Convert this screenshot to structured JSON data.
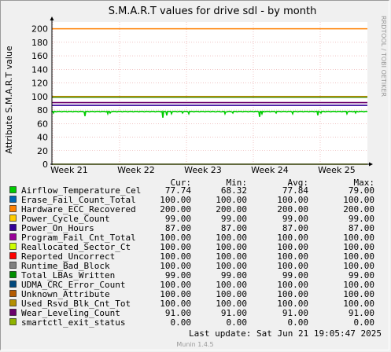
{
  "chart_data": {
    "type": "line",
    "title": "S.M.A.R.T values for drive sdl - by month",
    "ylabel": "Attribute S.M.A.R.T value",
    "side_label": "RRDTOOL / TOBI OETIKER",
    "x_ticks": [
      "Week 21",
      "Week 22",
      "Week 23",
      "Week 24",
      "Week 25"
    ],
    "y_ticks": [
      "0",
      "20",
      "40",
      "60",
      "80",
      "100",
      "120",
      "140",
      "160",
      "180",
      "200"
    ],
    "ylim": [
      0,
      210
    ],
    "grid": true,
    "legend_headers": {
      "cur": "Cur:",
      "min": "Min:",
      "avg": "Avg:",
      "max": "Max:"
    },
    "series": [
      {
        "name": "Airflow_Temperature_Cel",
        "color": "#00cc00",
        "cur": "77.74",
        "min": "68.32",
        "avg": "77.84",
        "max": "79.00",
        "level": 78
      },
      {
        "name": "Erase_Fail_Count_Total",
        "color": "#0066b3",
        "cur": "100.00",
        "min": "100.00",
        "avg": "100.00",
        "max": "100.00",
        "level": 100
      },
      {
        "name": "Hardware_ECC_Recovered",
        "color": "#ff8000",
        "cur": "200.00",
        "min": "200.00",
        "avg": "200.00",
        "max": "200.00",
        "level": 200
      },
      {
        "name": "Power_Cycle_Count",
        "color": "#ffcc00",
        "cur": "99.00",
        "min": "99.00",
        "avg": "99.00",
        "max": "99.00",
        "level": 99
      },
      {
        "name": "Power_On_Hours",
        "color": "#330099",
        "cur": "87.00",
        "min": "87.00",
        "avg": "87.00",
        "max": "87.00",
        "level": 87
      },
      {
        "name": "Program_Fail_Cnt_Total",
        "color": "#990099",
        "cur": "100.00",
        "min": "100.00",
        "avg": "100.00",
        "max": "100.00",
        "level": 100
      },
      {
        "name": "Reallocated_Sector_Ct",
        "color": "#ccff00",
        "cur": "100.00",
        "min": "100.00",
        "avg": "100.00",
        "max": "100.00",
        "level": 100
      },
      {
        "name": "Reported_Uncorrect",
        "color": "#ff0000",
        "cur": "100.00",
        "min": "100.00",
        "avg": "100.00",
        "max": "100.00",
        "level": 100
      },
      {
        "name": "Runtime_Bad_Block",
        "color": "#808080",
        "cur": "100.00",
        "min": "100.00",
        "avg": "100.00",
        "max": "100.00",
        "level": 100
      },
      {
        "name": "Total_LBAs_Written",
        "color": "#008f00",
        "cur": "99.00",
        "min": "99.00",
        "avg": "99.00",
        "max": "99.00",
        "level": 99
      },
      {
        "name": "UDMA_CRC_Error_Count",
        "color": "#00487d",
        "cur": "100.00",
        "min": "100.00",
        "avg": "100.00",
        "max": "100.00",
        "level": 100
      },
      {
        "name": "Unknown_Attribute",
        "color": "#b35a00",
        "cur": "100.00",
        "min": "100.00",
        "avg": "100.00",
        "max": "100.00",
        "level": 100
      },
      {
        "name": "Used_Rsvd_Blk_Cnt_Tot",
        "color": "#b38f00",
        "cur": "100.00",
        "min": "100.00",
        "avg": "100.00",
        "max": "100.00",
        "level": 100
      },
      {
        "name": "Wear_Leveling_Count",
        "color": "#6b006b",
        "cur": "91.00",
        "min": "91.00",
        "avg": "91.00",
        "max": "91.00",
        "level": 91
      },
      {
        "name": "smartctl_exit_status",
        "color": "#8fb300",
        "cur": "0.00",
        "min": "0.00",
        "avg": "0.00",
        "max": "0.00",
        "level": 0
      }
    ],
    "last_update": "Last update:  Sat Jun 21 19:05:47 2025",
    "footer": "Munin 1.4.5"
  }
}
